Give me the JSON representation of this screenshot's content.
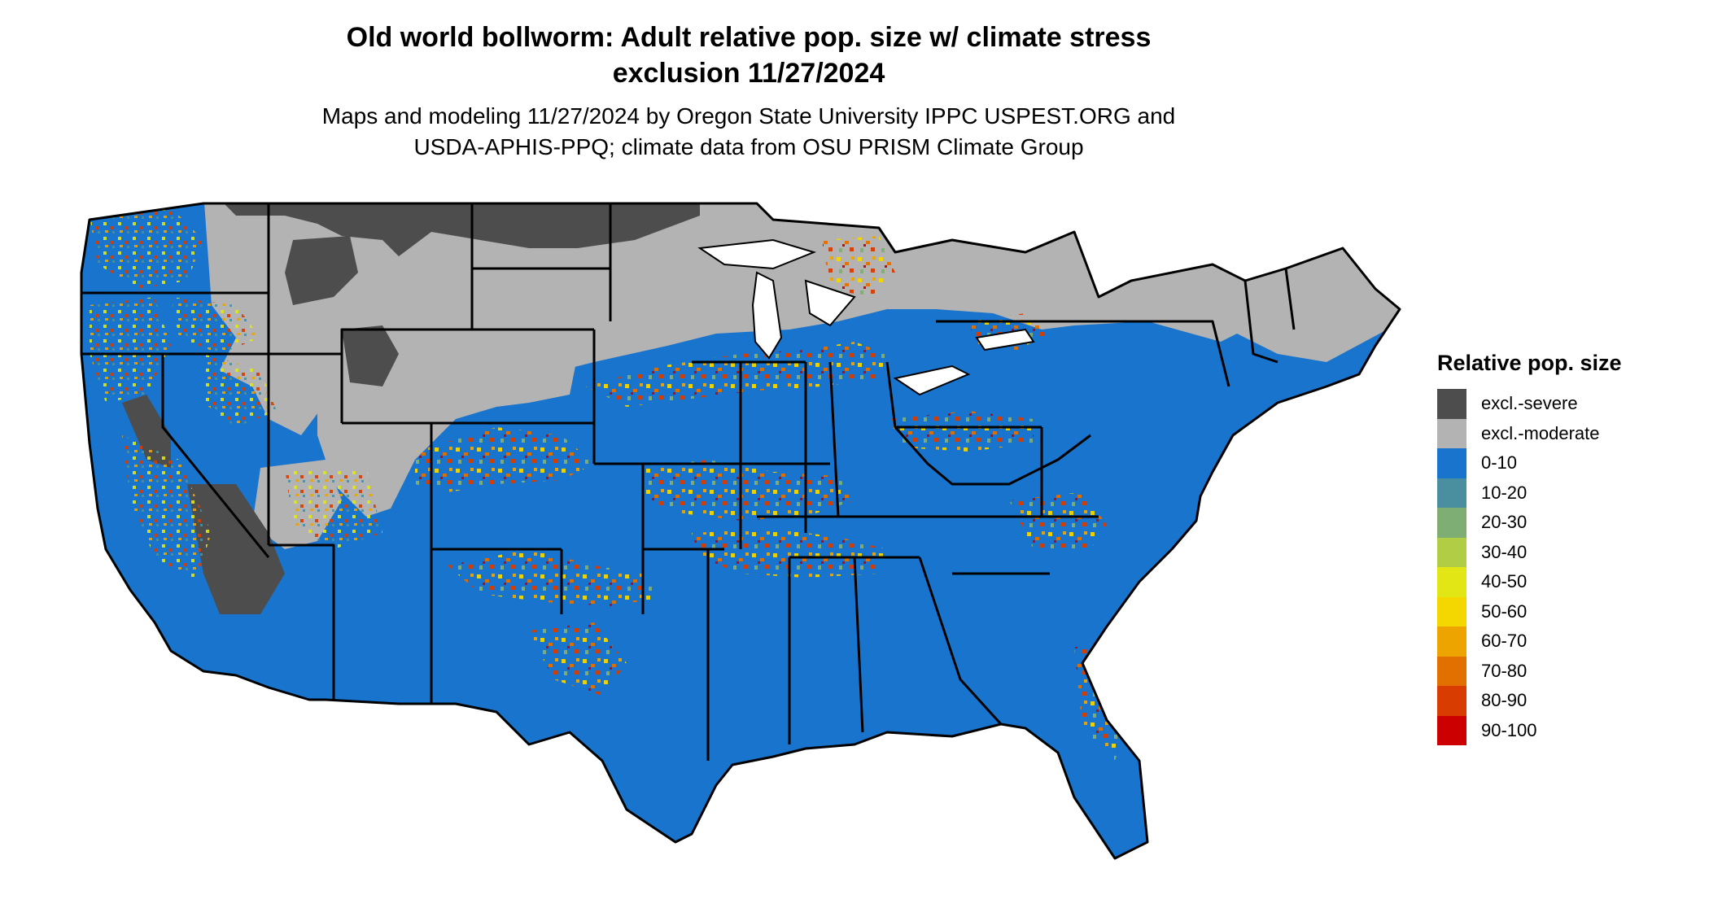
{
  "title": {
    "line1": "Old world bollworm: Adult relative pop. size w/ climate stress",
    "line2": "exclusion 11/27/2024"
  },
  "subtitle": {
    "line1": "Maps and modeling 11/27/2024 by Oregon State University IPPC USPEST.ORG and",
    "line2": "USDA-APHIS-PPQ; climate data from OSU PRISM Climate Group"
  },
  "legend": {
    "title": "Relative pop. size",
    "items": [
      {
        "label": "excl.-severe",
        "color": "#4d4d4d"
      },
      {
        "label": "excl.-moderate",
        "color": "#b3b3b3"
      },
      {
        "label": "0-10",
        "color": "#1874cd"
      },
      {
        "label": "10-20",
        "color": "#4a8fa0"
      },
      {
        "label": "20-30",
        "color": "#7fae74"
      },
      {
        "label": "30-40",
        "color": "#b1cc45"
      },
      {
        "label": "40-50",
        "color": "#e2e614"
      },
      {
        "label": "50-60",
        "color": "#f5d700"
      },
      {
        "label": "60-70",
        "color": "#eea400"
      },
      {
        "label": "70-80",
        "color": "#e27000"
      },
      {
        "label": "80-90",
        "color": "#d83c00"
      },
      {
        "label": "90-100",
        "color": "#cc0000"
      }
    ]
  }
}
